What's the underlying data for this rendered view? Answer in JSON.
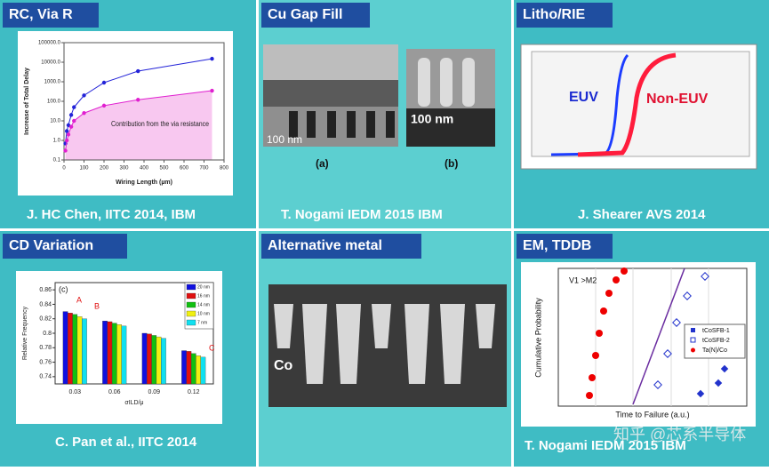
{
  "panels": [
    {
      "title": "RC, Via R",
      "caption": "J. HC Chen, IITC 2014, IBM",
      "chart": {
        "type": "line",
        "x_label": "Wiring Length (µm)",
        "y_label": "Increase of Total Delay",
        "annotation": "Contribution from the via resistance",
        "log_y": true,
        "xlim": [
          0,
          800
        ],
        "xticks": [
          0,
          100,
          200,
          300,
          400,
          500,
          600,
          700,
          800
        ],
        "ylim": [
          0.1,
          100000
        ],
        "yticks": [
          0.1,
          {
            "value": 1,
            "label": "1.0"
          },
          {
            "value": 10,
            "label": "10.0"
          },
          {
            "value": 100,
            "label": "100.0"
          },
          {
            "value": 1000,
            "label": "1000.0"
          },
          {
            "value": 10000,
            "label": "10000.0"
          },
          {
            "value": 100000,
            "label": "100000.0"
          }
        ],
        "x": [
          7,
          14,
          22,
          36,
          50,
          100,
          200,
          370,
          740
        ],
        "series": [
          {
            "color": "#2323d8",
            "values": [
              0.7,
              3,
              6,
              20,
              50,
              200,
              900,
              3500,
              15000
            ]
          },
          {
            "color": "#e020d0",
            "values": [
              0.3,
              1,
              2,
              5,
              10,
              25,
              60,
              120,
              350
            ]
          }
        ]
      }
    },
    {
      "title": "Cu Gap Fill",
      "caption": "T. Nogami IEDM 2015 IBM",
      "labels": [
        "100 nm",
        "100 nm",
        "(a)",
        "(b)"
      ]
    },
    {
      "title": "Litho/RIE",
      "caption": "J. Shearer AVS 2014",
      "labels": [
        "EUV",
        "Non-EUV"
      ]
    },
    {
      "title": "CD Variation",
      "caption": "C. Pan et al., IITC 2014",
      "chart": {
        "type": "bar",
        "x_label": "σILD/μ",
        "y_label": "Relative Frequency",
        "annotations": [
          "(c)",
          "A",
          "B",
          "C"
        ],
        "categories": [
          "0.03",
          "0.06",
          "0.09",
          "0.12"
        ],
        "ylim": [
          0.73,
          0.87
        ],
        "yticks": [
          0.74,
          0.76,
          0.78,
          0.8,
          0.82,
          0.84,
          0.86
        ],
        "series": [
          {
            "name": "20 nm",
            "color": "#1010e0",
            "values": [
              0.83,
              0.817,
              0.8,
              0.776
            ]
          },
          {
            "name": "16 nm",
            "color": "#e01010",
            "values": [
              0.828,
              0.816,
              0.799,
              0.775
            ]
          },
          {
            "name": "14 nm",
            "color": "#10c010",
            "values": [
              0.826,
              0.814,
              0.797,
              0.772
            ]
          },
          {
            "name": "10 nm",
            "color": "#f0f010",
            "values": [
              0.823,
              0.812,
              0.795,
              0.769
            ]
          },
          {
            "name": "7 nm",
            "color": "#10e0f0",
            "values": [
              0.82,
              0.81,
              0.793,
              0.767
            ]
          }
        ]
      }
    },
    {
      "title": "Alternative metal",
      "labels": [
        "Co"
      ]
    },
    {
      "title": "EM, TDDB",
      "caption": "T. Nogami IEDM 2015 IBM",
      "labels": [
        "V1 >M2",
        "Cumulative Probability",
        "Time to Failure (a.u.)"
      ],
      "legend": [
        "tCoSFB-1",
        "tCoSFB-2",
        "Ta(N)/Co"
      ]
    }
  ],
  "watermark": "知乎 @芯系半导体"
}
